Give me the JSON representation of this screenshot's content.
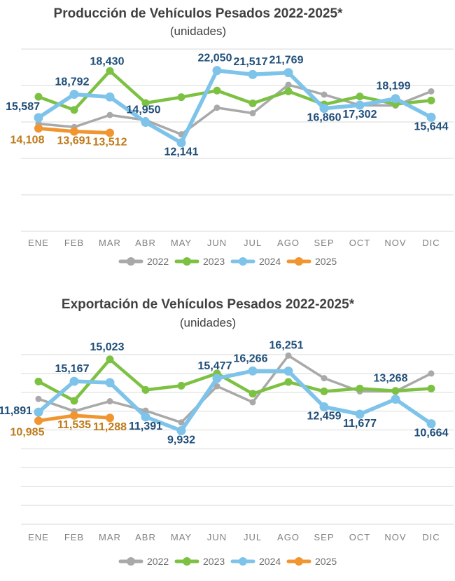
{
  "page": {
    "background": "#FFFFFF"
  },
  "chart_data": [
    {
      "type": "line",
      "title": "Producción de Vehículos Pesados 2022-2025*",
      "subtitle": "(unidades)",
      "categories": [
        "ENE",
        "FEB",
        "MAR",
        "ABR",
        "MAY",
        "JUN",
        "JUL",
        "AGO",
        "SEP",
        "OCT",
        "NOV",
        "DIC"
      ],
      "ylim": [
        0,
        25000
      ],
      "grid_step": 5000,
      "grid": true,
      "legend_position": "bottom",
      "series": [
        {
          "name": "2022",
          "color": "#A9A9A9",
          "values": [
            14750,
            14300,
            15950,
            15250,
            13300,
            16950,
            16200,
            20100,
            18750,
            17300,
            17250,
            19200
          ]
        },
        {
          "name": "2023",
          "color": "#7CC142",
          "values": [
            18450,
            16650,
            22000,
            17600,
            18400,
            19300,
            17550,
            19200,
            17400,
            18500,
            17450,
            17950
          ]
        },
        {
          "name": "2024",
          "color": "#7EC3E9",
          "label_color": "#1F4E79",
          "values": [
            15587,
            18792,
            18430,
            14950,
            12141,
            22050,
            21517,
            21769,
            16860,
            17302,
            18199,
            15644
          ],
          "labels": [
            "15,587",
            "18,792",
            "18,430",
            "14,950",
            "12,141",
            "22,050",
            "21,517",
            "21,769",
            "16,860",
            "17,302",
            "18,199",
            "15,644"
          ],
          "label_pos": [
            "left-up",
            "above",
            "above-far",
            "above",
            "below",
            "above",
            "above",
            "above",
            "below",
            "below",
            "above",
            "below"
          ]
        },
        {
          "name": "2025",
          "color": "#F0952F",
          "label_color": "#BE7A18",
          "values": [
            14108,
            13691,
            13512
          ],
          "labels": [
            "14,108",
            "13,691",
            "13,512"
          ],
          "label_pos": [
            "below-left",
            "below",
            "below"
          ]
        }
      ]
    },
    {
      "type": "line",
      "title": "Exportación de Vehículos Pesados 2022-2025*",
      "subtitle": "(unidades)",
      "categories": [
        "ENE",
        "FEB",
        "MAR",
        "ABR",
        "MAY",
        "JUN",
        "JUL",
        "AGO",
        "SEP",
        "OCT",
        "NOV",
        "DIC"
      ],
      "ylim": [
        0,
        18000
      ],
      "grid_step": 2000,
      "grid": true,
      "legend_position": "bottom",
      "series": [
        {
          "name": "2022",
          "color": "#A9A9A9",
          "values": [
            13300,
            12000,
            13050,
            12050,
            10800,
            14650,
            12950,
            17900,
            15500,
            14100,
            14100,
            16000
          ]
        },
        {
          "name": "2023",
          "color": "#7CC142",
          "values": [
            15150,
            13100,
            17500,
            14250,
            14700,
            16000,
            13850,
            15100,
            14100,
            14400,
            14150,
            14400
          ]
        },
        {
          "name": "2024",
          "color": "#7EC3E9",
          "label_color": "#1F4E79",
          "values": [
            11891,
            15167,
            15023,
            11391,
            9932,
            15477,
            16266,
            16251,
            12459,
            11677,
            13268,
            10664
          ],
          "labels": [
            "11,891",
            "15,167",
            "15,023",
            "11,391",
            "9,932",
            "15,477",
            "16,266",
            "16,251",
            "12,459",
            "11,677",
            "13,268",
            "10,664"
          ],
          "label_pos": [
            "left",
            "above",
            "above-far",
            "below",
            "below",
            "above",
            "above",
            "above-mid",
            "below",
            "below",
            "above-high",
            "below"
          ]
        },
        {
          "name": "2025",
          "color": "#F0952F",
          "label_color": "#BE7A18",
          "values": [
            10985,
            11535,
            11288
          ],
          "labels": [
            "10,985",
            "11,535",
            "11,288"
          ],
          "label_pos": [
            "below-left",
            "below",
            "below"
          ]
        }
      ]
    }
  ]
}
